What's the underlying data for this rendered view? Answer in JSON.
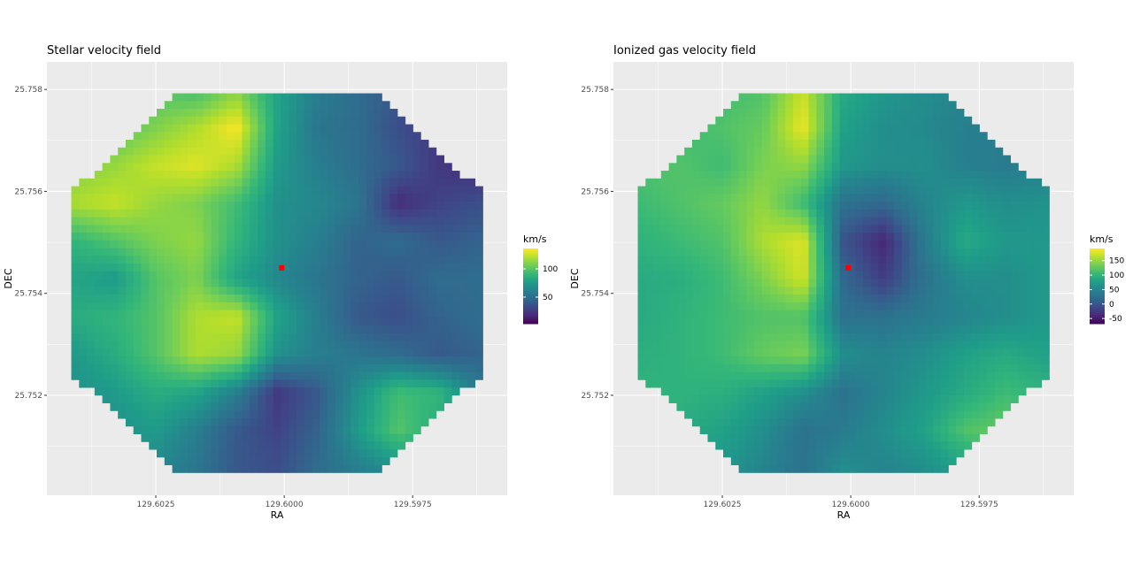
{
  "chart_data": [
    {
      "type": "heatmap",
      "title": "Stellar velocity field",
      "xlabel": "RA",
      "ylabel": "DEC",
      "x_reversed": true,
      "xlim": [
        129.60462,
        129.59566
      ],
      "ylim": [
        25.75004,
        25.75854
      ],
      "x_ticks": [
        129.6025,
        129.6,
        129.5975
      ],
      "x_tick_labels": [
        "129.6025",
        "129.6000",
        "129.5975"
      ],
      "y_ticks": [
        25.758,
        25.756,
        25.754,
        25.752
      ],
      "y_tick_labels": [
        "25.758",
        "25.756",
        "25.754",
        "25.752"
      ],
      "grid": true,
      "colorscale": "viridis",
      "legend": {
        "title": "km/s",
        "placement": "right",
        "range": [
          3,
          136
        ],
        "ticks": [
          50,
          100
        ],
        "tick_labels": [
          "50",
          "100"
        ]
      },
      "marker": {
        "ra": 129.60005,
        "dec": 25.7545,
        "color": "#ff0000"
      },
      "grid_ra": [
        129.60407,
        129.60328,
        129.6025,
        129.6017,
        129.60093,
        129.60014,
        129.59935,
        129.59857,
        129.59778,
        129.597,
        129.59621
      ],
      "grid_dec": [
        25.758,
        25.75725,
        25.75651,
        25.75576,
        25.75502,
        25.75427,
        25.75353,
        25.75278,
        25.75204,
        25.75129,
        25.75056
      ],
      "z": [
        [
          90,
          95,
          100,
          95,
          110,
          80,
          60,
          50,
          40,
          30,
          25
        ],
        [
          95,
          100,
          110,
          120,
          135,
          80,
          55,
          50,
          35,
          25,
          20
        ],
        [
          110,
          115,
          125,
          130,
          120,
          75,
          60,
          50,
          40,
          25,
          20
        ],
        [
          120,
          125,
          115,
          110,
          95,
          70,
          65,
          55,
          20,
          30,
          35
        ],
        [
          90,
          100,
          110,
          115,
          90,
          70,
          60,
          45,
          50,
          40,
          45
        ],
        [
          80,
          75,
          100,
          110,
          80,
          65,
          55,
          45,
          40,
          50,
          50
        ],
        [
          85,
          90,
          100,
          120,
          125,
          80,
          60,
          40,
          35,
          45,
          50
        ],
        [
          75,
          85,
          100,
          120,
          115,
          70,
          60,
          55,
          50,
          40,
          45
        ],
        [
          70,
          75,
          85,
          80,
          60,
          25,
          40,
          70,
          95,
          90,
          60
        ],
        [
          65,
          70,
          75,
          60,
          40,
          30,
          45,
          75,
          100,
          85,
          60
        ],
        [
          60,
          60,
          65,
          55,
          40,
          35,
          50,
          60,
          70,
          60,
          55
        ]
      ]
    },
    {
      "type": "heatmap",
      "title": "Ionized gas velocity field",
      "xlabel": "RA",
      "ylabel": "DEC",
      "x_reversed": true,
      "xlim": [
        129.60462,
        129.59566
      ],
      "ylim": [
        25.75004,
        25.75854
      ],
      "x_ticks": [
        129.6025,
        129.6,
        129.5975
      ],
      "x_tick_labels": [
        "129.6025",
        "129.6000",
        "129.5975"
      ],
      "y_ticks": [
        25.758,
        25.756,
        25.754,
        25.752
      ],
      "y_tick_labels": [
        "25.758",
        "25.756",
        "25.754",
        "25.752"
      ],
      "grid": true,
      "colorscale": "viridis",
      "legend": {
        "title": "km/s",
        "placement": "right",
        "range": [
          -68,
          192
        ],
        "ticks": [
          -50,
          0,
          50,
          100,
          150
        ],
        "tick_labels": [
          "-50",
          "0",
          "50",
          "100",
          "150"
        ]
      },
      "marker": {
        "ra": 129.60005,
        "dec": 25.7545,
        "color": "#ff0000"
      },
      "grid_ra": [
        129.60407,
        129.60328,
        129.6025,
        129.6017,
        129.60093,
        129.60014,
        129.59935,
        129.59857,
        129.59778,
        129.597,
        129.59621
      ],
      "grid_dec": [
        25.758,
        25.75725,
        25.75651,
        25.75576,
        25.75502,
        25.75427,
        25.75353,
        25.75278,
        25.75204,
        25.75129,
        25.75056
      ],
      "z": [
        [
          100,
          100,
          110,
          120,
          170,
          90,
          70,
          60,
          50,
          40,
          40
        ],
        [
          110,
          110,
          120,
          130,
          185,
          80,
          60,
          55,
          45,
          40,
          40
        ],
        [
          120,
          120,
          110,
          140,
          150,
          70,
          60,
          60,
          45,
          40,
          45
        ],
        [
          110,
          120,
          130,
          150,
          110,
          30,
          20,
          50,
          70,
          60,
          65
        ],
        [
          100,
          110,
          120,
          160,
          180,
          0,
          -40,
          40,
          90,
          70,
          70
        ],
        [
          90,
          95,
          110,
          140,
          175,
          20,
          -20,
          30,
          60,
          60,
          70
        ],
        [
          90,
          100,
          110,
          120,
          120,
          30,
          30,
          40,
          50,
          60,
          70
        ],
        [
          95,
          100,
          110,
          130,
          140,
          60,
          50,
          60,
          80,
          90,
          80
        ],
        [
          100,
          100,
          95,
          80,
          60,
          30,
          50,
          70,
          90,
          110,
          100
        ],
        [
          90,
          90,
          80,
          60,
          30,
          40,
          60,
          80,
          120,
          130,
          100
        ],
        [
          80,
          80,
          70,
          50,
          30,
          60,
          50,
          60,
          80,
          100,
          90
        ]
      ]
    }
  ]
}
